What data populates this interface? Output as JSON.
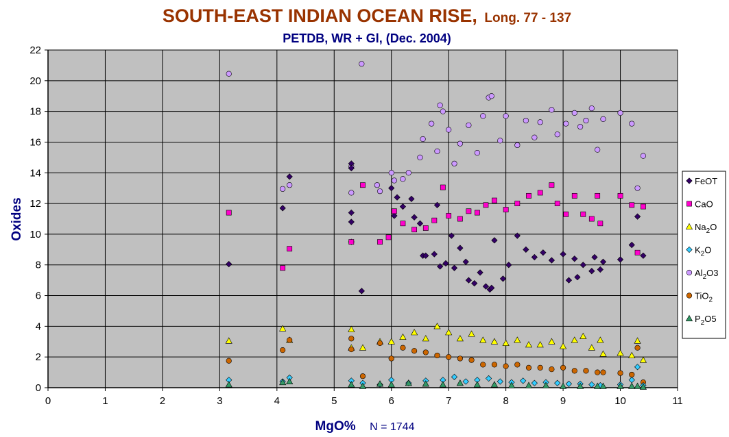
{
  "chart_data": {
    "type": "scatter",
    "title": "SOUTH-EAST INDIAN OCEAN RISE,",
    "title_suffix": "Long. 77 - 137",
    "subtitle": "PETDB, WR + Gl, (Dec. 2004)",
    "xlabel": "MgO%",
    "xlabel_note": "N = 1744",
    "ylabel": "Oxides",
    "xlim": [
      0,
      11
    ],
    "ylim": [
      0,
      22
    ],
    "x_ticks": [
      "0",
      "1",
      "2",
      "3",
      "4",
      "5",
      "6",
      "7",
      "8",
      "9",
      "10",
      "11"
    ],
    "y_ticks": [
      "0",
      "2",
      "4",
      "6",
      "8",
      "10",
      "12",
      "14",
      "16",
      "18",
      "20",
      "22"
    ],
    "grid": true,
    "plot_background": "#c0c0c0",
    "legend_position": "right",
    "series": [
      {
        "name": "FeOT",
        "label_main": "FeO",
        "label_sub": "",
        "label_tail": "T",
        "marker": "diamond",
        "color": "#330066",
        "points": [
          [
            3.16,
            8.05
          ],
          [
            4.1,
            11.7
          ],
          [
            4.22,
            13.75
          ],
          [
            5.3,
            14.6
          ],
          [
            5.3,
            14.3
          ],
          [
            5.3,
            11.4
          ],
          [
            5.3,
            10.8
          ],
          [
            5.3,
            9.5
          ],
          [
            5.48,
            6.3
          ],
          [
            6.0,
            13.0
          ],
          [
            6.05,
            11.2
          ],
          [
            6.1,
            12.4
          ],
          [
            6.2,
            11.8
          ],
          [
            6.35,
            12.3
          ],
          [
            6.4,
            11.1
          ],
          [
            6.5,
            10.7
          ],
          [
            6.55,
            8.6
          ],
          [
            6.6,
            8.6
          ],
          [
            6.75,
            8.7
          ],
          [
            6.8,
            11.9
          ],
          [
            6.85,
            7.9
          ],
          [
            6.95,
            8.1
          ],
          [
            7.05,
            9.9
          ],
          [
            7.1,
            7.8
          ],
          [
            7.2,
            9.1
          ],
          [
            7.3,
            8.2
          ],
          [
            7.35,
            7.0
          ],
          [
            7.45,
            6.8
          ],
          [
            7.55,
            7.5
          ],
          [
            7.65,
            6.6
          ],
          [
            7.72,
            6.4
          ],
          [
            7.75,
            6.5
          ],
          [
            7.8,
            9.6
          ],
          [
            7.95,
            7.1
          ],
          [
            8.05,
            8.0
          ],
          [
            8.2,
            9.9
          ],
          [
            8.35,
            9.0
          ],
          [
            8.5,
            8.5
          ],
          [
            8.65,
            8.8
          ],
          [
            8.8,
            8.3
          ],
          [
            9.0,
            8.7
          ],
          [
            9.1,
            7.0
          ],
          [
            9.2,
            8.4
          ],
          [
            9.25,
            7.2
          ],
          [
            9.35,
            8.0
          ],
          [
            9.5,
            7.6
          ],
          [
            9.55,
            8.5
          ],
          [
            9.65,
            7.7
          ],
          [
            9.7,
            8.2
          ],
          [
            10.0,
            8.35
          ],
          [
            10.2,
            9.3
          ],
          [
            10.3,
            11.15
          ],
          [
            10.4,
            8.6
          ]
        ]
      },
      {
        "name": "CaO",
        "label_main": "CaO",
        "label_sub": "",
        "label_tail": "",
        "marker": "square",
        "color": "#ff00cc",
        "points": [
          [
            3.16,
            11.4
          ],
          [
            4.1,
            7.8
          ],
          [
            4.22,
            9.05
          ],
          [
            5.3,
            9.5
          ],
          [
            5.5,
            13.2
          ],
          [
            5.8,
            9.5
          ],
          [
            5.95,
            9.8
          ],
          [
            6.05,
            11.5
          ],
          [
            6.2,
            10.7
          ],
          [
            6.4,
            10.3
          ],
          [
            6.6,
            10.4
          ],
          [
            6.75,
            10.9
          ],
          [
            6.9,
            13.05
          ],
          [
            7.0,
            11.2
          ],
          [
            7.2,
            11.0
          ],
          [
            7.35,
            11.5
          ],
          [
            7.5,
            11.4
          ],
          [
            7.65,
            11.9
          ],
          [
            7.8,
            12.2
          ],
          [
            8.0,
            11.6
          ],
          [
            8.2,
            12.0
          ],
          [
            8.4,
            12.5
          ],
          [
            8.6,
            12.7
          ],
          [
            8.8,
            13.2
          ],
          [
            8.9,
            12.0
          ],
          [
            9.05,
            11.3
          ],
          [
            9.2,
            12.5
          ],
          [
            9.35,
            11.3
          ],
          [
            9.5,
            11.0
          ],
          [
            9.6,
            12.5
          ],
          [
            9.65,
            10.7
          ],
          [
            10.0,
            12.5
          ],
          [
            10.2,
            11.9
          ],
          [
            10.3,
            8.8
          ],
          [
            10.4,
            11.8
          ]
        ]
      },
      {
        "name": "Na2O",
        "label_main": "Na",
        "label_sub": "2",
        "label_tail": "O",
        "marker": "triangle",
        "color": "#ffff00",
        "points": [
          [
            3.16,
            3.05
          ],
          [
            4.1,
            3.85
          ],
          [
            4.22,
            3.1
          ],
          [
            5.3,
            3.8
          ],
          [
            5.3,
            2.6
          ],
          [
            5.5,
            2.6
          ],
          [
            5.8,
            3.0
          ],
          [
            6.0,
            3.0
          ],
          [
            6.2,
            3.3
          ],
          [
            6.4,
            3.6
          ],
          [
            6.6,
            3.2
          ],
          [
            6.8,
            4.0
          ],
          [
            7.0,
            3.6
          ],
          [
            7.2,
            3.2
          ],
          [
            7.4,
            3.5
          ],
          [
            7.6,
            3.1
          ],
          [
            7.8,
            3.0
          ],
          [
            8.0,
            2.9
          ],
          [
            8.2,
            3.1
          ],
          [
            8.4,
            2.8
          ],
          [
            8.6,
            2.8
          ],
          [
            8.8,
            3.0
          ],
          [
            9.0,
            2.7
          ],
          [
            9.2,
            3.1
          ],
          [
            9.35,
            3.35
          ],
          [
            9.5,
            2.6
          ],
          [
            9.65,
            3.1
          ],
          [
            9.7,
            2.2
          ],
          [
            10.0,
            2.25
          ],
          [
            10.2,
            2.1
          ],
          [
            10.3,
            3.05
          ],
          [
            10.4,
            1.8
          ]
        ]
      },
      {
        "name": "K2O",
        "label_main": "K",
        "label_sub": "2",
        "label_tail": "O",
        "marker": "diamond",
        "color": "#33ccff",
        "points": [
          [
            3.16,
            0.5
          ],
          [
            4.1,
            0.4
          ],
          [
            4.22,
            0.65
          ],
          [
            5.3,
            0.45
          ],
          [
            5.5,
            0.3
          ],
          [
            5.8,
            0.2
          ],
          [
            6.0,
            0.5
          ],
          [
            6.3,
            0.3
          ],
          [
            6.6,
            0.45
          ],
          [
            6.9,
            0.5
          ],
          [
            7.1,
            0.7
          ],
          [
            7.3,
            0.4
          ],
          [
            7.5,
            0.5
          ],
          [
            7.7,
            0.6
          ],
          [
            7.9,
            0.4
          ],
          [
            8.1,
            0.35
          ],
          [
            8.3,
            0.45
          ],
          [
            8.5,
            0.3
          ],
          [
            8.7,
            0.35
          ],
          [
            8.9,
            0.3
          ],
          [
            9.1,
            0.25
          ],
          [
            9.3,
            0.25
          ],
          [
            9.5,
            0.2
          ],
          [
            9.65,
            0.15
          ],
          [
            10.0,
            0.2
          ],
          [
            10.2,
            0.5
          ],
          [
            10.3,
            1.35
          ],
          [
            10.4,
            0.15
          ]
        ]
      },
      {
        "name": "Al2O3",
        "label_main": "Al",
        "label_sub": "2",
        "label_tail": "O3",
        "marker": "circle",
        "color": "#cc99ff",
        "points": [
          [
            3.16,
            20.45
          ],
          [
            4.1,
            12.95
          ],
          [
            4.22,
            13.2
          ],
          [
            5.3,
            14.4
          ],
          [
            5.3,
            12.7
          ],
          [
            5.48,
            21.1
          ],
          [
            5.75,
            13.2
          ],
          [
            5.8,
            12.8
          ],
          [
            6.0,
            14.0
          ],
          [
            6.05,
            13.5
          ],
          [
            6.2,
            13.6
          ],
          [
            6.3,
            14.0
          ],
          [
            6.5,
            15.0
          ],
          [
            6.55,
            16.2
          ],
          [
            6.7,
            17.2
          ],
          [
            6.8,
            15.4
          ],
          [
            6.85,
            18.4
          ],
          [
            6.9,
            18.0
          ],
          [
            7.0,
            16.8
          ],
          [
            7.1,
            14.6
          ],
          [
            7.2,
            15.9
          ],
          [
            7.35,
            17.1
          ],
          [
            7.5,
            15.3
          ],
          [
            7.6,
            17.7
          ],
          [
            7.7,
            18.9
          ],
          [
            7.75,
            19.0
          ],
          [
            7.9,
            16.1
          ],
          [
            8.0,
            17.7
          ],
          [
            8.2,
            15.8
          ],
          [
            8.35,
            17.4
          ],
          [
            8.5,
            16.3
          ],
          [
            8.6,
            17.3
          ],
          [
            8.8,
            18.1
          ],
          [
            8.9,
            16.5
          ],
          [
            9.05,
            17.2
          ],
          [
            9.2,
            17.9
          ],
          [
            9.3,
            17.0
          ],
          [
            9.4,
            17.4
          ],
          [
            9.5,
            18.2
          ],
          [
            9.6,
            15.5
          ],
          [
            9.7,
            17.5
          ],
          [
            10.0,
            17.9
          ],
          [
            10.2,
            17.2
          ],
          [
            10.3,
            13.0
          ],
          [
            10.4,
            15.1
          ]
        ]
      },
      {
        "name": "TiO2",
        "label_main": "TiO",
        "label_sub": "2",
        "label_tail": "",
        "marker": "circle",
        "color": "#cc6600",
        "points": [
          [
            3.16,
            1.75
          ],
          [
            4.1,
            2.45
          ],
          [
            4.22,
            3.1
          ],
          [
            5.3,
            3.2
          ],
          [
            5.3,
            2.5
          ],
          [
            5.5,
            0.75
          ],
          [
            5.8,
            2.9
          ],
          [
            6.0,
            1.9
          ],
          [
            6.2,
            2.6
          ],
          [
            6.4,
            2.4
          ],
          [
            6.6,
            2.3
          ],
          [
            6.8,
            2.1
          ],
          [
            7.0,
            2.0
          ],
          [
            7.2,
            1.9
          ],
          [
            7.4,
            1.8
          ],
          [
            7.6,
            1.5
          ],
          [
            7.8,
            1.5
          ],
          [
            8.0,
            1.4
          ],
          [
            8.2,
            1.5
          ],
          [
            8.4,
            1.3
          ],
          [
            8.6,
            1.3
          ],
          [
            8.8,
            1.2
          ],
          [
            9.0,
            1.3
          ],
          [
            9.2,
            1.1
          ],
          [
            9.4,
            1.1
          ],
          [
            9.6,
            1.0
          ],
          [
            9.7,
            1.0
          ],
          [
            10.0,
            0.95
          ],
          [
            10.2,
            0.85
          ],
          [
            10.3,
            2.6
          ],
          [
            10.4,
            0.35
          ]
        ]
      },
      {
        "name": "P2O5",
        "label_main": "P",
        "label_sub": "2",
        "label_tail": "O5",
        "marker": "triangle",
        "color": "#339966",
        "points": [
          [
            3.16,
            0.2
          ],
          [
            4.1,
            0.35
          ],
          [
            4.22,
            0.4
          ],
          [
            5.3,
            0.2
          ],
          [
            5.5,
            0.1
          ],
          [
            5.8,
            0.25
          ],
          [
            6.0,
            0.2
          ],
          [
            6.3,
            0.3
          ],
          [
            6.6,
            0.25
          ],
          [
            6.9,
            0.2
          ],
          [
            7.2,
            0.3
          ],
          [
            7.5,
            0.2
          ],
          [
            7.8,
            0.2
          ],
          [
            8.1,
            0.15
          ],
          [
            8.4,
            0.15
          ],
          [
            8.7,
            0.15
          ],
          [
            9.0,
            0.1
          ],
          [
            9.3,
            0.1
          ],
          [
            9.6,
            0.1
          ],
          [
            9.7,
            0.1
          ],
          [
            10.0,
            0.1
          ],
          [
            10.2,
            0.1
          ],
          [
            10.3,
            0.1
          ],
          [
            10.4,
            0.05
          ]
        ]
      }
    ]
  }
}
